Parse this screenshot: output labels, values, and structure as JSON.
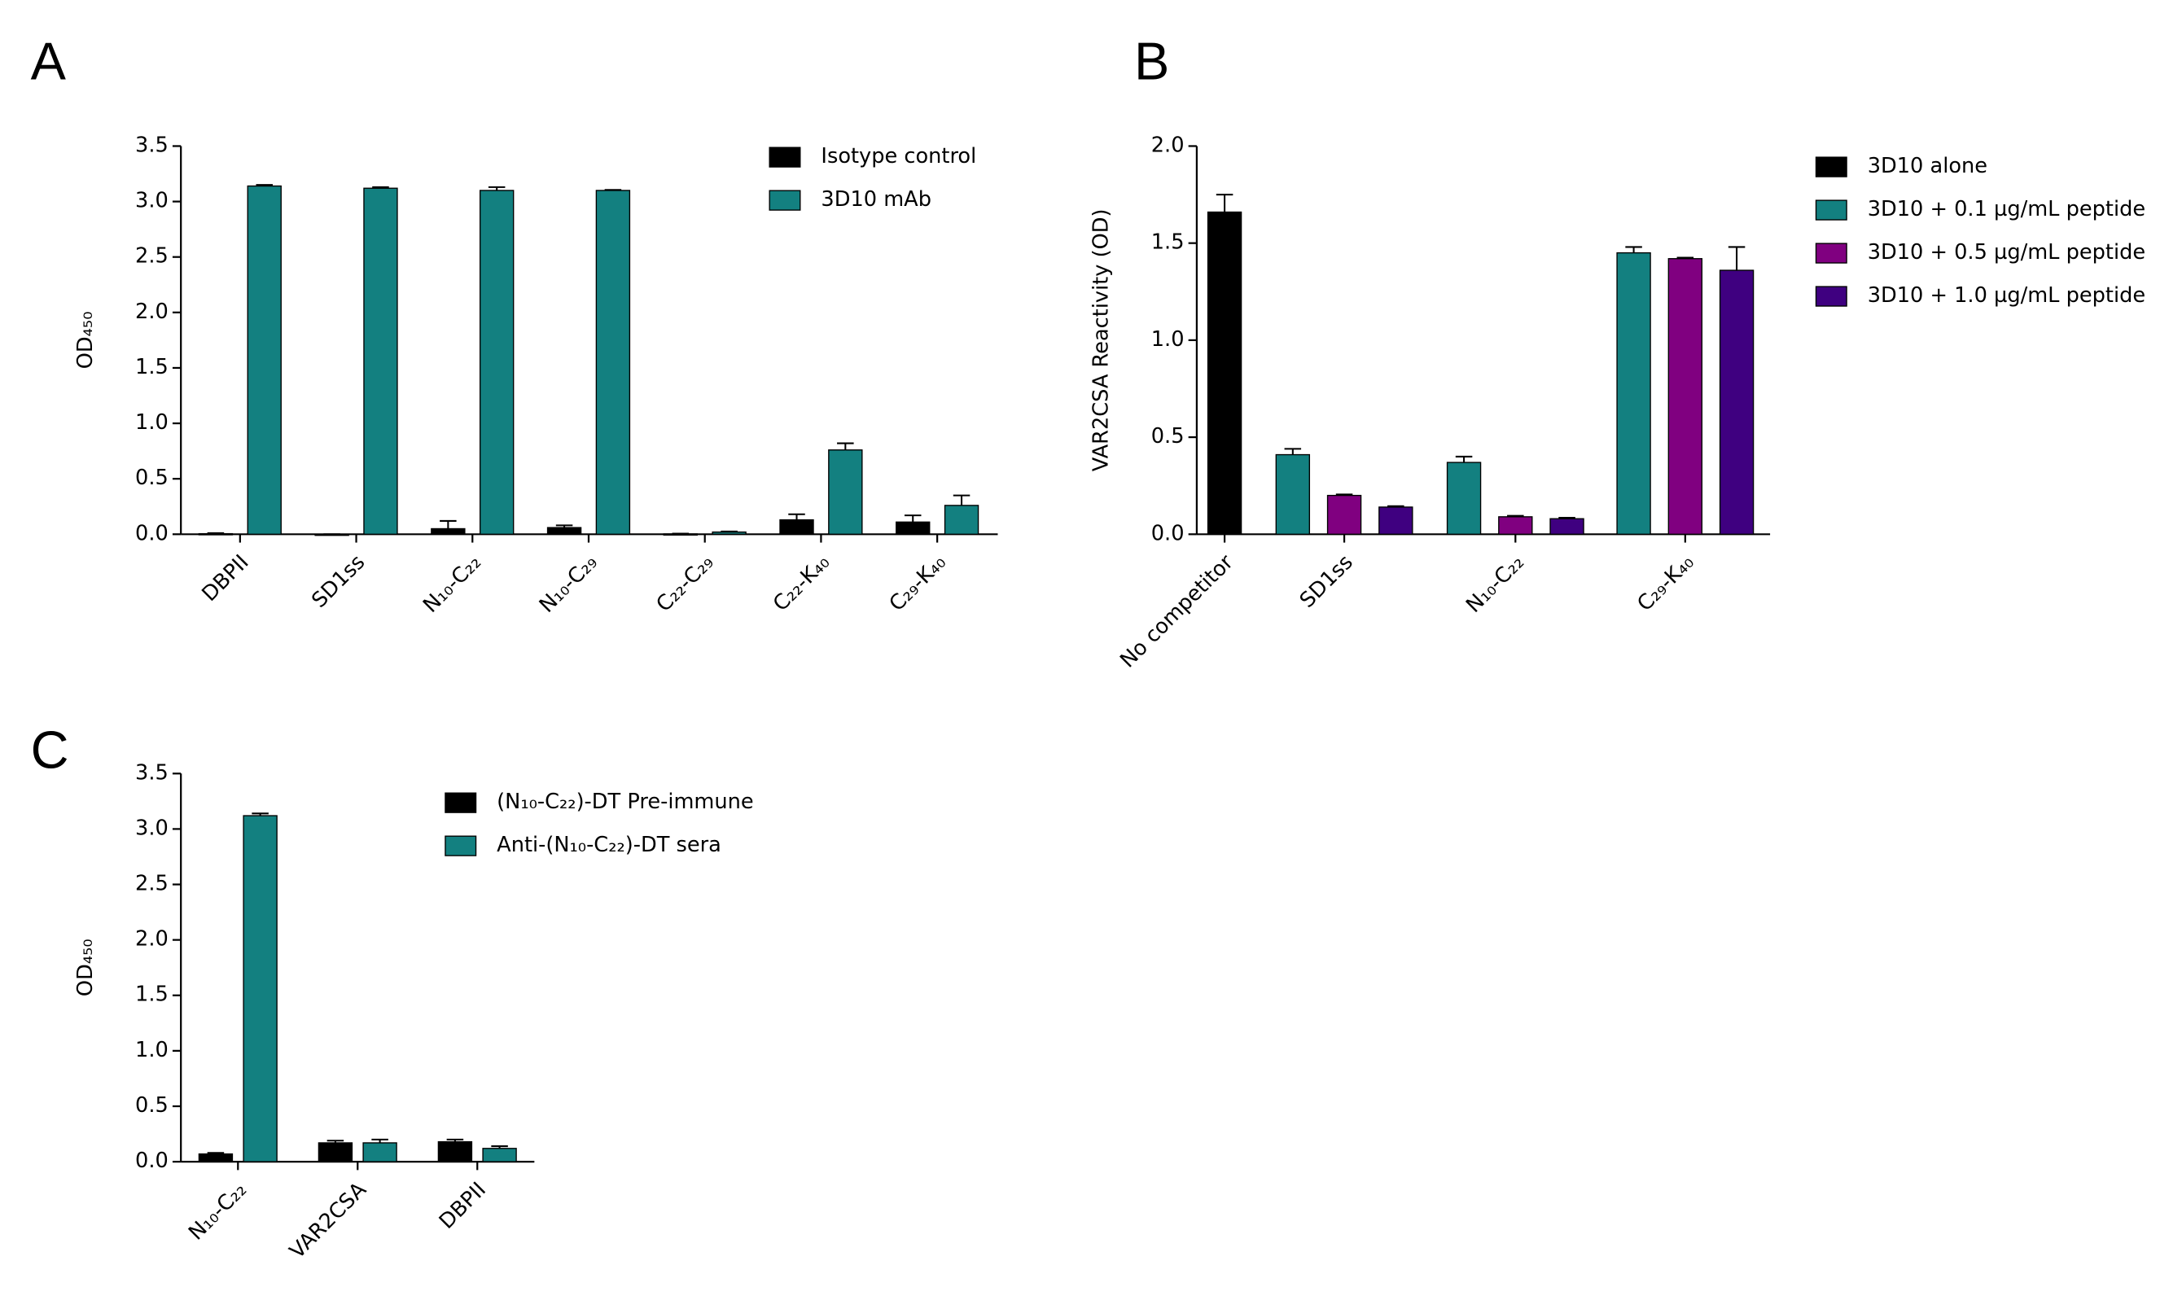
{
  "chart_data": [
    {
      "type": "bar",
      "panel": "A",
      "ylabel": "OD₄₅₀",
      "categories": [
        "DBPII",
        "SD1ss",
        "N₁₀-C₂₂",
        "N₁₀-C₂₉",
        "C₂₂-C₂₉",
        "C₂₂-K₄₀",
        "C₂₉-K₄₀"
      ],
      "series": [
        {
          "name": "Isotype control",
          "color": "#000000",
          "values": [
            0.005,
            0,
            0.05,
            0.06,
            0.003,
            0.13,
            0.11
          ],
          "errors": [
            0.005,
            0,
            0.07,
            0.02,
            0.003,
            0.05,
            0.06
          ]
        },
        {
          "name": "3D10 mAb",
          "color": "#138080",
          "values": [
            3.14,
            3.12,
            3.1,
            3.1,
            0.02,
            0.76,
            0.26
          ],
          "errors": [
            0.01,
            0.01,
            0.03,
            0.005,
            0.005,
            0.06,
            0.09
          ]
        }
      ],
      "ylim": [
        0,
        3.5
      ],
      "yticks": [
        {
          "value": 0,
          "label": "0.0"
        },
        0.5,
        {
          "value": 1,
          "label": "1.0"
        },
        1.5,
        {
          "value": 2,
          "label": "2.0"
        },
        2.5,
        {
          "value": 3,
          "label": "3.0"
        },
        3.5
      ]
    },
    {
      "type": "bar",
      "panel": "B",
      "ylabel": "VAR2CSA Reactivity (OD)",
      "categories": [
        "No competitor",
        "SD1ss",
        "N₁₀-C₂₂",
        "C₂₉-K₄₀"
      ],
      "series": [
        {
          "name": "3D10 alone",
          "color": "#000000",
          "values": [
            1.66,
            null,
            null,
            null
          ],
          "errors": [
            0.09,
            null,
            null,
            null
          ]
        },
        {
          "name": "3D10 + 0.1 µg/mL peptide",
          "color": "#138080",
          "values": [
            null,
            0.41,
            0.37,
            1.45
          ],
          "errors": [
            null,
            0.03,
            0.03,
            0.03
          ]
        },
        {
          "name": "3D10 + 0.5 µg/mL peptide",
          "color": "#800080",
          "values": [
            null,
            0.2,
            0.09,
            1.42
          ],
          "errors": [
            null,
            0.005,
            0.005,
            0.005
          ]
        },
        {
          "name": "3D10 + 1.0 µg/mL peptide",
          "color": "#3f0080",
          "values": [
            null,
            0.14,
            0.08,
            1.36
          ],
          "errors": [
            null,
            0.005,
            0.005,
            0.12
          ]
        }
      ],
      "ylim": [
        0,
        2
      ],
      "yticks": [
        {
          "value": 0,
          "label": "0.0"
        },
        0.5,
        {
          "value": 1,
          "label": "1.0"
        },
        1.5,
        {
          "value": 2,
          "label": "2.0"
        }
      ]
    },
    {
      "type": "bar",
      "panel": "C",
      "ylabel": "OD₄₅₀",
      "categories": [
        "N₁₀-C₂₂",
        "VAR2CSA",
        "DBPII"
      ],
      "series": [
        {
          "name": "(N₁₀-C₂₂)-DT Pre-immune",
          "color": "#000000",
          "values": [
            0.07,
            0.17,
            0.18
          ],
          "errors": [
            0.01,
            0.02,
            0.02
          ]
        },
        {
          "name": "Anti-(N₁₀-C₂₂)-DT sera",
          "color": "#138080",
          "values": [
            3.12,
            0.17,
            0.12
          ],
          "errors": [
            0.02,
            0.03,
            0.02
          ]
        }
      ],
      "ylim": [
        0,
        3.5
      ],
      "yticks": [
        {
          "value": 0,
          "label": "0.0"
        },
        0.5,
        {
          "value": 1,
          "label": "1.0"
        },
        1.5,
        {
          "value": 2,
          "label": "2.0"
        },
        2.5,
        {
          "value": 3,
          "label": "3.0"
        },
        3.5
      ]
    }
  ]
}
